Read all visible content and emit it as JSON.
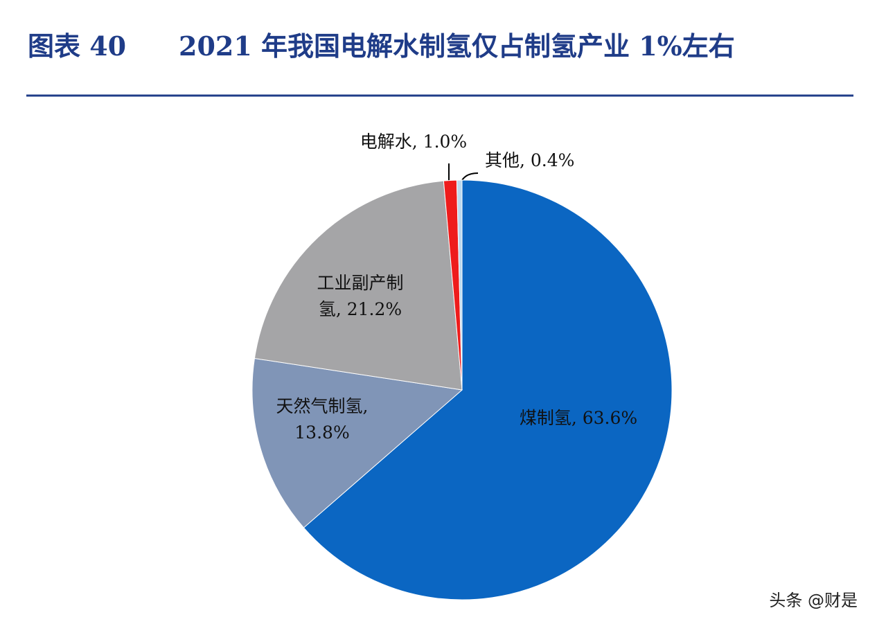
{
  "chart_data": {
    "type": "pie",
    "figure_label": "图表 40",
    "title": "2021 年我国电解水制氢仅占制氢产业 1%左右",
    "values": [
      63.6,
      13.8,
      21.2,
      1.0,
      0.4
    ],
    "value_labels": [
      "煤制氢, 63.6%",
      "天然气制氢,\n13.8%",
      "工业副产制\n氢, 21.2%",
      "电解水, 1.0%",
      "其他, 0.4%"
    ],
    "colors": [
      "#0b66c2",
      "#8095b7",
      "#a5a5a7",
      "#ee1c1c",
      "#bcd9ee"
    ]
  },
  "watermark": "头条 @财是"
}
